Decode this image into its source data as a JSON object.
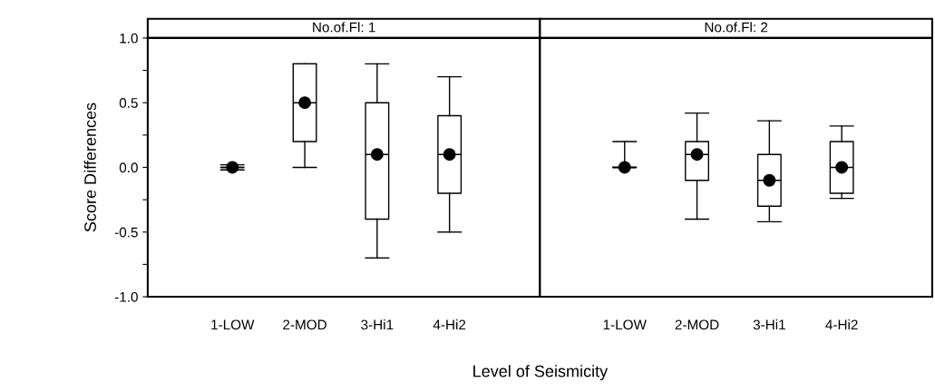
{
  "chart_data": [
    {
      "type": "box",
      "title": "No.of.Fl: 1",
      "xlabel": "Level of Seismicity",
      "ylabel": "Score Differences",
      "categories": [
        "1-LOW",
        "2-MOD",
        "3-Hi1",
        "4-Hi2"
      ],
      "boxes": [
        {
          "low": -0.02,
          "q1": 0.0,
          "median": 0.0,
          "q3": 0.0,
          "high": 0.02,
          "mean": 0.0
        },
        {
          "low": 0.0,
          "q1": 0.2,
          "median": 0.5,
          "q3": 0.8,
          "high": 0.8,
          "mean": 0.5
        },
        {
          "low": -0.7,
          "q1": -0.4,
          "median": 0.1,
          "q3": 0.5,
          "high": 0.8,
          "mean": 0.1
        },
        {
          "low": -0.5,
          "q1": -0.2,
          "median": 0.1,
          "q3": 0.4,
          "high": 0.7,
          "mean": 0.1
        }
      ],
      "ylim": [
        -1.0,
        1.0
      ],
      "yticks": [
        {
          "value": -1.0,
          "label": "-1.0"
        },
        {
          "value": -0.75,
          "label": null
        },
        {
          "value": -0.5,
          "label": "-0.5"
        },
        {
          "value": -0.25,
          "label": null
        },
        {
          "value": 0.0,
          "label": "0.0"
        },
        {
          "value": 0.25,
          "label": null
        },
        {
          "value": 0.5,
          "label": "0.5"
        },
        {
          "value": 0.75,
          "label": null
        },
        {
          "value": 1.0,
          "label": "1.0"
        }
      ]
    },
    {
      "type": "box",
      "title": "No.of.Fl: 2",
      "categories": [
        "1-LOW",
        "2-MOD",
        "3-Hi1",
        "4-Hi2"
      ],
      "boxes": [
        {
          "low": 0.0,
          "q1": 0.0,
          "median": 0.0,
          "q3": 0.0,
          "high": 0.2,
          "mean": 0.0
        },
        {
          "low": -0.4,
          "q1": -0.1,
          "median": 0.1,
          "q3": 0.2,
          "high": 0.42,
          "mean": 0.1
        },
        {
          "low": -0.42,
          "q1": -0.3,
          "median": -0.1,
          "q3": 0.1,
          "high": 0.36,
          "mean": -0.1
        },
        {
          "low": -0.24,
          "q1": -0.2,
          "median": 0.0,
          "q3": 0.2,
          "high": 0.32,
          "mean": 0.0
        }
      ],
      "ylim": [
        -1.0,
        1.0
      ],
      "tick_labels": "x"
    }
  ]
}
